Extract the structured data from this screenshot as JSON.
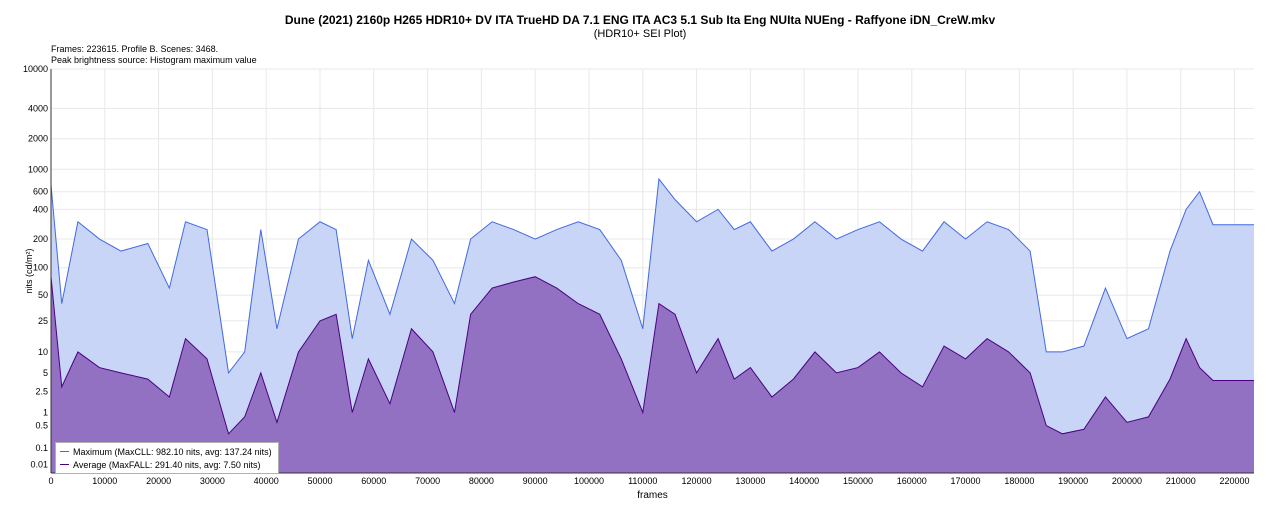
{
  "chart_data": {
    "type": "area",
    "title": "Dune (2021) 2160p H265 HDR10+ DV ITA TrueHD DA 7.1 ENG ITA AC3 5.1 Sub Ita Eng NUIta NUEng - Raffyone iDN_CreW.mkv",
    "subtitle": "(HDR10+ SEI Plot)",
    "info_lines": [
      "Frames: 223615. Profile B. Scenes: 3468.",
      "Peak brightness source: Histogram maximum value"
    ],
    "xlabel": "frames",
    "ylabel": "nits (cd/m²)",
    "y_scale": "log-pq",
    "xlim": [
      0,
      223615
    ],
    "ylim": [
      0,
      10000
    ],
    "x_ticks": [
      0,
      10000,
      20000,
      30000,
      40000,
      50000,
      60000,
      70000,
      80000,
      90000,
      100000,
      110000,
      120000,
      130000,
      140000,
      150000,
      160000,
      170000,
      180000,
      190000,
      200000,
      210000,
      220000
    ],
    "y_ticks": [
      0.01,
      0.1,
      0.5,
      1,
      2.5,
      5,
      10,
      25,
      50,
      100,
      200,
      400,
      600,
      1000,
      2000,
      4000,
      10000
    ],
    "grid": true,
    "legend_position": "bottom-left",
    "series": [
      {
        "name": "Maximum (MaxCLL: 982.10 nits, avg: 137.24 nits)",
        "color": "#4169e1",
        "fill": "#c8d5f7",
        "x": [
          0,
          2000,
          5000,
          9000,
          13000,
          18000,
          22000,
          25000,
          29000,
          33000,
          36000,
          39000,
          42000,
          46000,
          50000,
          53000,
          56000,
          59000,
          63000,
          67000,
          71000,
          75000,
          78000,
          82000,
          86000,
          90000,
          94000,
          98000,
          102000,
          106000,
          110000,
          113000,
          116000,
          120000,
          124000,
          127000,
          130000,
          134000,
          138000,
          142000,
          146000,
          150000,
          154000,
          158000,
          162000,
          166000,
          170000,
          174000,
          178000,
          182000,
          185000,
          188000,
          192000,
          196000,
          200000,
          204000,
          208000,
          211000,
          213500,
          216000,
          223615
        ],
        "values": [
          700,
          40,
          300,
          200,
          150,
          180,
          60,
          300,
          250,
          5,
          10,
          250,
          20,
          200,
          300,
          250,
          15,
          120,
          30,
          200,
          120,
          40,
          200,
          300,
          250,
          200,
          250,
          300,
          250,
          120,
          20,
          800,
          500,
          300,
          400,
          250,
          300,
          150,
          200,
          300,
          200,
          250,
          300,
          200,
          150,
          300,
          200,
          300,
          250,
          150,
          10,
          10,
          12,
          60,
          15,
          20,
          150,
          400,
          600,
          280,
          280
        ]
      },
      {
        "name": "Average (MaxFALL: 291.40 nits, avg: 7.50 nits)",
        "color": "#4b0082",
        "fill": "#9270c2",
        "x": [
          0,
          2000,
          5000,
          9000,
          13000,
          18000,
          22000,
          25000,
          29000,
          33000,
          36000,
          39000,
          42000,
          46000,
          50000,
          53000,
          56000,
          59000,
          63000,
          67000,
          71000,
          75000,
          78000,
          82000,
          86000,
          90000,
          94000,
          98000,
          102000,
          106000,
          110000,
          113000,
          116000,
          120000,
          124000,
          127000,
          130000,
          134000,
          138000,
          142000,
          146000,
          150000,
          154000,
          158000,
          162000,
          166000,
          170000,
          174000,
          178000,
          182000,
          185000,
          188000,
          192000,
          196000,
          200000,
          204000,
          208000,
          211000,
          213500,
          216000,
          223615
        ],
        "values": [
          80,
          3,
          10,
          6,
          5,
          4,
          2,
          15,
          8,
          0.3,
          0.8,
          5,
          0.6,
          10,
          25,
          30,
          1,
          8,
          1.5,
          20,
          10,
          1,
          30,
          60,
          70,
          80,
          60,
          40,
          30,
          8,
          1,
          40,
          30,
          5,
          15,
          4,
          6,
          2,
          4,
          10,
          5,
          6,
          10,
          5,
          3,
          12,
          8,
          15,
          10,
          5,
          0.5,
          0.3,
          0.4,
          2,
          0.6,
          0.8,
          4,
          15,
          6,
          3.8,
          3.8
        ]
      }
    ]
  }
}
